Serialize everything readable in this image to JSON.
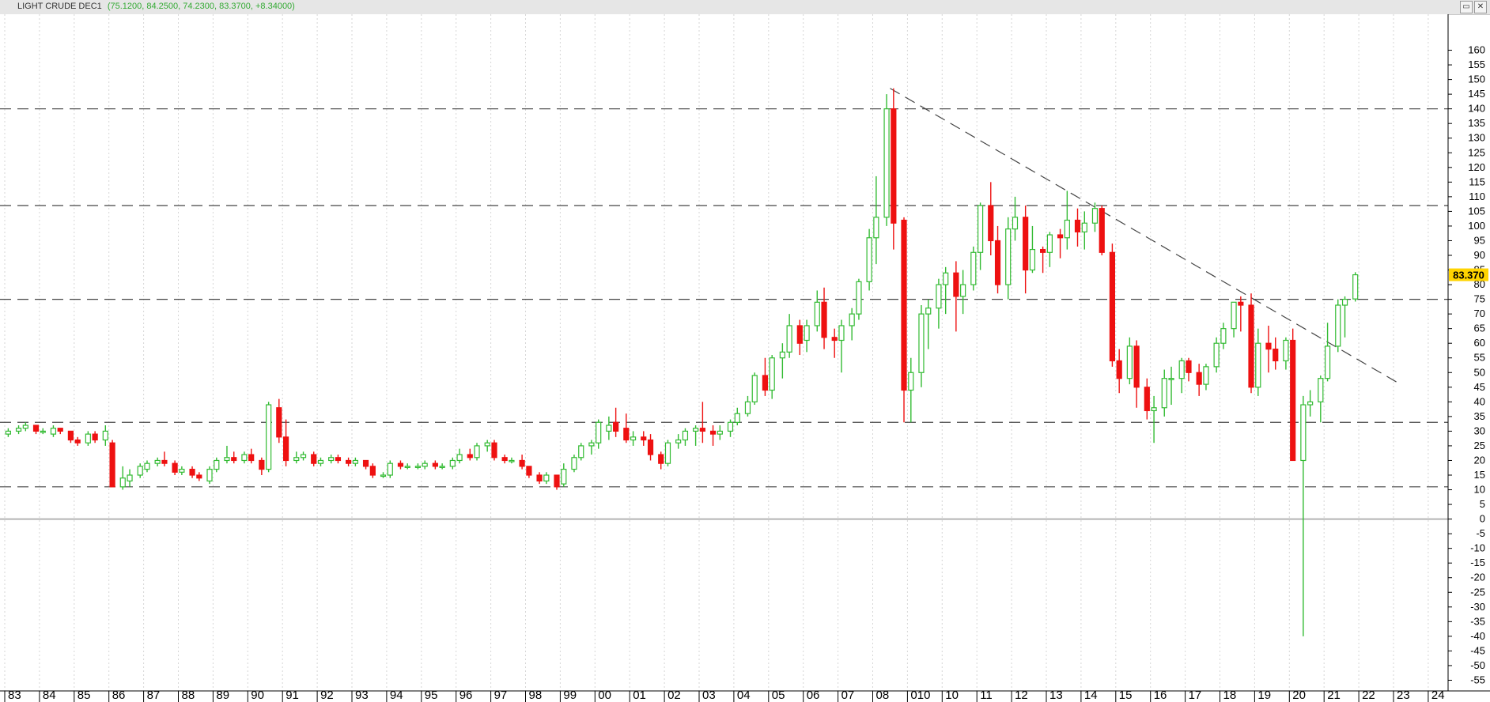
{
  "window": {
    "title": "LIGHT CRUDE DEC1",
    "values": "(75.1200, 84.2500, 74.2300, 83.3700, +8.34000)",
    "restore_glyph": "▭",
    "close_glyph": "✕"
  },
  "colors": {
    "up": "#33bb33",
    "down": "#ee1111",
    "price_tag": "#ffd400",
    "grid": "#d6d6d6",
    "guide": "#444444"
  },
  "chart_data": {
    "type": "candlestick",
    "title": "LIGHT CRUDE DEC1",
    "xlabel": "",
    "ylabel": "",
    "ylim": [
      -60,
      165
    ],
    "y_ticks": [
      160,
      155,
      150,
      145,
      140,
      135,
      130,
      125,
      120,
      115,
      110,
      105,
      100,
      95,
      90,
      85,
      80,
      75,
      70,
      65,
      60,
      55,
      50,
      45,
      40,
      35,
      30,
      25,
      20,
      15,
      10,
      5,
      0,
      -5,
      -10,
      -15,
      -20,
      -25,
      -30,
      -35,
      -40,
      -45,
      -50,
      -55
    ],
    "x_start_year": 1983,
    "x_end_year": 2025,
    "x_tick_labels": [
      "83",
      "84",
      "85",
      "86",
      "87",
      "88",
      "89",
      "90",
      "91",
      "92",
      "93",
      "94",
      "95",
      "96",
      "97",
      "98",
      "99",
      "00",
      "01",
      "02",
      "03",
      "04",
      "05",
      "06",
      "07",
      "08",
      "010",
      "10",
      "11",
      "12",
      "13",
      "14",
      "15",
      "16",
      "17",
      "18",
      "19",
      "20",
      "21",
      "22",
      "23",
      "24"
    ],
    "last_price": "83.370",
    "grid": true,
    "horizontal_levels": [
      140,
      107,
      75,
      33,
      11
    ],
    "zero_line": 0,
    "trendline": {
      "from": {
        "x": 2008.5,
        "y": 147
      },
      "to": {
        "x": 2023.2,
        "y": 46
      }
    },
    "candles": [
      {
        "t": 1983.1,
        "o": 29,
        "h": 31,
        "l": 28,
        "c": 30
      },
      {
        "t": 1983.4,
        "o": 30,
        "h": 32,
        "l": 29,
        "c": 31
      },
      {
        "t": 1983.6,
        "o": 31,
        "h": 33,
        "l": 30,
        "c": 32
      },
      {
        "t": 1983.9,
        "o": 32,
        "h": 32,
        "l": 29,
        "c": 30
      },
      {
        "t": 1984.1,
        "o": 30,
        "h": 31,
        "l": 29,
        "c": 30
      },
      {
        "t": 1984.4,
        "o": 29,
        "h": 32,
        "l": 28,
        "c": 31
      },
      {
        "t": 1984.6,
        "o": 31,
        "h": 31,
        "l": 29,
        "c": 30
      },
      {
        "t": 1984.9,
        "o": 30,
        "h": 30,
        "l": 26,
        "c": 27
      },
      {
        "t": 1985.1,
        "o": 27,
        "h": 28,
        "l": 25,
        "c": 26
      },
      {
        "t": 1985.4,
        "o": 26,
        "h": 30,
        "l": 25,
        "c": 29
      },
      {
        "t": 1985.6,
        "o": 29,
        "h": 30,
        "l": 26,
        "c": 27
      },
      {
        "t": 1985.9,
        "o": 27,
        "h": 32,
        "l": 25,
        "c": 30
      },
      {
        "t": 1986.1,
        "o": 26,
        "h": 27,
        "l": 11,
        "c": 11
      },
      {
        "t": 1986.4,
        "o": 11,
        "h": 18,
        "l": 10,
        "c": 14
      },
      {
        "t": 1986.6,
        "o": 13,
        "h": 17,
        "l": 11,
        "c": 15
      },
      {
        "t": 1986.9,
        "o": 15,
        "h": 19,
        "l": 14,
        "c": 18
      },
      {
        "t": 1987.1,
        "o": 17,
        "h": 20,
        "l": 16,
        "c": 19
      },
      {
        "t": 1987.4,
        "o": 19,
        "h": 21,
        "l": 18,
        "c": 20
      },
      {
        "t": 1987.6,
        "o": 20,
        "h": 23,
        "l": 18,
        "c": 19
      },
      {
        "t": 1987.9,
        "o": 19,
        "h": 20,
        "l": 15,
        "c": 16
      },
      {
        "t": 1988.1,
        "o": 16,
        "h": 18,
        "l": 15,
        "c": 17
      },
      {
        "t": 1988.4,
        "o": 17,
        "h": 18,
        "l": 14,
        "c": 15
      },
      {
        "t": 1988.6,
        "o": 15,
        "h": 16,
        "l": 13,
        "c": 14
      },
      {
        "t": 1988.9,
        "o": 13,
        "h": 18,
        "l": 12,
        "c": 17
      },
      {
        "t": 1989.1,
        "o": 17,
        "h": 21,
        "l": 16,
        "c": 20
      },
      {
        "t": 1989.4,
        "o": 20,
        "h": 25,
        "l": 19,
        "c": 21
      },
      {
        "t": 1989.6,
        "o": 21,
        "h": 23,
        "l": 19,
        "c": 20
      },
      {
        "t": 1989.9,
        "o": 20,
        "h": 23,
        "l": 19,
        "c": 22
      },
      {
        "t": 1990.1,
        "o": 22,
        "h": 24,
        "l": 19,
        "c": 20
      },
      {
        "t": 1990.4,
        "o": 20,
        "h": 21,
        "l": 15,
        "c": 17
      },
      {
        "t": 1990.6,
        "o": 17,
        "h": 40,
        "l": 16,
        "c": 39
      },
      {
        "t": 1990.9,
        "o": 38,
        "h": 41,
        "l": 26,
        "c": 28
      },
      {
        "t": 1991.1,
        "o": 28,
        "h": 34,
        "l": 18,
        "c": 20
      },
      {
        "t": 1991.4,
        "o": 20,
        "h": 23,
        "l": 19,
        "c": 21
      },
      {
        "t": 1991.6,
        "o": 21,
        "h": 23,
        "l": 20,
        "c": 22
      },
      {
        "t": 1991.9,
        "o": 22,
        "h": 23,
        "l": 18,
        "c": 19
      },
      {
        "t": 1992.1,
        "o": 19,
        "h": 21,
        "l": 18,
        "c": 20
      },
      {
        "t": 1992.4,
        "o": 20,
        "h": 22,
        "l": 19,
        "c": 21
      },
      {
        "t": 1992.6,
        "o": 21,
        "h": 22,
        "l": 19,
        "c": 20
      },
      {
        "t": 1992.9,
        "o": 20,
        "h": 21,
        "l": 18,
        "c": 19
      },
      {
        "t": 1993.1,
        "o": 19,
        "h": 21,
        "l": 18,
        "c": 20
      },
      {
        "t": 1993.4,
        "o": 20,
        "h": 20,
        "l": 17,
        "c": 18
      },
      {
        "t": 1993.6,
        "o": 18,
        "h": 19,
        "l": 14,
        "c": 15
      },
      {
        "t": 1993.9,
        "o": 15,
        "h": 16,
        "l": 14,
        "c": 15
      },
      {
        "t": 1994.1,
        "o": 15,
        "h": 20,
        "l": 14,
        "c": 19
      },
      {
        "t": 1994.4,
        "o": 19,
        "h": 20,
        "l": 17,
        "c": 18
      },
      {
        "t": 1994.6,
        "o": 18,
        "h": 19,
        "l": 17,
        "c": 18
      },
      {
        "t": 1994.9,
        "o": 18,
        "h": 19,
        "l": 17,
        "c": 18
      },
      {
        "t": 1995.1,
        "o": 18,
        "h": 20,
        "l": 17,
        "c": 19
      },
      {
        "t": 1995.4,
        "o": 19,
        "h": 20,
        "l": 17,
        "c": 18
      },
      {
        "t": 1995.6,
        "o": 18,
        "h": 19,
        "l": 17,
        "c": 18
      },
      {
        "t": 1995.9,
        "o": 18,
        "h": 21,
        "l": 17,
        "c": 20
      },
      {
        "t": 1996.1,
        "o": 20,
        "h": 24,
        "l": 19,
        "c": 22
      },
      {
        "t": 1996.4,
        "o": 22,
        "h": 24,
        "l": 20,
        "c": 21
      },
      {
        "t": 1996.6,
        "o": 21,
        "h": 26,
        "l": 20,
        "c": 25
      },
      {
        "t": 1996.9,
        "o": 25,
        "h": 27,
        "l": 23,
        "c": 26
      },
      {
        "t": 1997.1,
        "o": 26,
        "h": 27,
        "l": 20,
        "c": 21
      },
      {
        "t": 1997.4,
        "o": 21,
        "h": 22,
        "l": 19,
        "c": 20
      },
      {
        "t": 1997.6,
        "o": 20,
        "h": 21,
        "l": 19,
        "c": 20
      },
      {
        "t": 1997.9,
        "o": 20,
        "h": 22,
        "l": 17,
        "c": 18
      },
      {
        "t": 1998.1,
        "o": 18,
        "h": 18,
        "l": 14,
        "c": 15
      },
      {
        "t": 1998.4,
        "o": 15,
        "h": 16,
        "l": 12,
        "c": 13
      },
      {
        "t": 1998.6,
        "o": 13,
        "h": 16,
        "l": 12,
        "c": 15
      },
      {
        "t": 1998.9,
        "o": 15,
        "h": 15,
        "l": 10,
        "c": 11
      },
      {
        "t": 1999.1,
        "o": 12,
        "h": 19,
        "l": 11,
        "c": 17
      },
      {
        "t": 1999.4,
        "o": 17,
        "h": 22,
        "l": 16,
        "c": 21
      },
      {
        "t": 1999.6,
        "o": 21,
        "h": 26,
        "l": 20,
        "c": 25
      },
      {
        "t": 1999.9,
        "o": 25,
        "h": 27,
        "l": 22,
        "c": 26
      },
      {
        "t": 2000.1,
        "o": 26,
        "h": 34,
        "l": 24,
        "c": 33
      },
      {
        "t": 2000.4,
        "o": 30,
        "h": 35,
        "l": 27,
        "c": 32
      },
      {
        "t": 2000.6,
        "o": 33,
        "h": 38,
        "l": 28,
        "c": 30
      },
      {
        "t": 2000.9,
        "o": 31,
        "h": 36,
        "l": 26,
        "c": 27
      },
      {
        "t": 2001.1,
        "o": 27,
        "h": 30,
        "l": 25,
        "c": 28
      },
      {
        "t": 2001.4,
        "o": 28,
        "h": 30,
        "l": 25,
        "c": 27
      },
      {
        "t": 2001.6,
        "o": 27,
        "h": 29,
        "l": 20,
        "c": 22
      },
      {
        "t": 2001.9,
        "o": 22,
        "h": 23,
        "l": 17,
        "c": 19
      },
      {
        "t": 2002.1,
        "o": 19,
        "h": 27,
        "l": 18,
        "c": 26
      },
      {
        "t": 2002.4,
        "o": 26,
        "h": 29,
        "l": 24,
        "c": 27
      },
      {
        "t": 2002.6,
        "o": 27,
        "h": 31,
        "l": 25,
        "c": 30
      },
      {
        "t": 2002.9,
        "o": 30,
        "h": 32,
        "l": 25,
        "c": 31
      },
      {
        "t": 2003.1,
        "o": 31,
        "h": 40,
        "l": 26,
        "c": 30
      },
      {
        "t": 2003.4,
        "o": 30,
        "h": 32,
        "l": 25,
        "c": 29
      },
      {
        "t": 2003.6,
        "o": 29,
        "h": 32,
        "l": 27,
        "c": 30
      },
      {
        "t": 2003.9,
        "o": 30,
        "h": 34,
        "l": 28,
        "c": 33
      },
      {
        "t": 2004.1,
        "o": 33,
        "h": 38,
        "l": 32,
        "c": 36
      },
      {
        "t": 2004.4,
        "o": 36,
        "h": 42,
        "l": 35,
        "c": 40
      },
      {
        "t": 2004.6,
        "o": 40,
        "h": 50,
        "l": 39,
        "c": 49
      },
      {
        "t": 2004.9,
        "o": 49,
        "h": 55,
        "l": 42,
        "c": 44
      },
      {
        "t": 2005.1,
        "o": 44,
        "h": 56,
        "l": 41,
        "c": 55
      },
      {
        "t": 2005.4,
        "o": 55,
        "h": 60,
        "l": 48,
        "c": 57
      },
      {
        "t": 2005.6,
        "o": 57,
        "h": 70,
        "l": 55,
        "c": 66
      },
      {
        "t": 2005.9,
        "o": 66,
        "h": 68,
        "l": 56,
        "c": 60
      },
      {
        "t": 2006.1,
        "o": 61,
        "h": 68,
        "l": 57,
        "c": 66
      },
      {
        "t": 2006.4,
        "o": 66,
        "h": 78,
        "l": 64,
        "c": 74
      },
      {
        "t": 2006.6,
        "o": 74,
        "h": 79,
        "l": 58,
        "c": 62
      },
      {
        "t": 2006.9,
        "o": 62,
        "h": 65,
        "l": 55,
        "c": 61
      },
      {
        "t": 2007.1,
        "o": 61,
        "h": 68,
        "l": 50,
        "c": 66
      },
      {
        "t": 2007.4,
        "o": 66,
        "h": 72,
        "l": 61,
        "c": 70
      },
      {
        "t": 2007.6,
        "o": 70,
        "h": 82,
        "l": 68,
        "c": 81
      },
      {
        "t": 2007.9,
        "o": 81,
        "h": 99,
        "l": 78,
        "c": 96
      },
      {
        "t": 2008.1,
        "o": 96,
        "h": 117,
        "l": 87,
        "c": 103
      },
      {
        "t": 2008.4,
        "o": 103,
        "h": 145,
        "l": 100,
        "c": 140
      },
      {
        "t": 2008.6,
        "o": 140,
        "h": 147,
        "l": 92,
        "c": 101
      },
      {
        "t": 2008.9,
        "o": 102,
        "h": 103,
        "l": 33,
        "c": 44
      },
      {
        "t": 2009.1,
        "o": 44,
        "h": 55,
        "l": 33,
        "c": 50
      },
      {
        "t": 2009.4,
        "o": 50,
        "h": 73,
        "l": 45,
        "c": 70
      },
      {
        "t": 2009.6,
        "o": 70,
        "h": 75,
        "l": 58,
        "c": 72
      },
      {
        "t": 2009.9,
        "o": 72,
        "h": 82,
        "l": 65,
        "c": 80
      },
      {
        "t": 2010.1,
        "o": 80,
        "h": 86,
        "l": 70,
        "c": 84
      },
      {
        "t": 2010.4,
        "o": 84,
        "h": 88,
        "l": 64,
        "c": 76
      },
      {
        "t": 2010.6,
        "o": 76,
        "h": 85,
        "l": 70,
        "c": 80
      },
      {
        "t": 2010.9,
        "o": 80,
        "h": 93,
        "l": 78,
        "c": 91
      },
      {
        "t": 2011.1,
        "o": 91,
        "h": 108,
        "l": 85,
        "c": 107
      },
      {
        "t": 2011.4,
        "o": 107,
        "h": 115,
        "l": 90,
        "c": 95
      },
      {
        "t": 2011.6,
        "o": 95,
        "h": 100,
        "l": 77,
        "c": 80
      },
      {
        "t": 2011.9,
        "o": 80,
        "h": 103,
        "l": 75,
        "c": 99
      },
      {
        "t": 2012.1,
        "o": 99,
        "h": 110,
        "l": 95,
        "c": 103
      },
      {
        "t": 2012.4,
        "o": 103,
        "h": 107,
        "l": 77,
        "c": 85
      },
      {
        "t": 2012.6,
        "o": 85,
        "h": 100,
        "l": 84,
        "c": 92
      },
      {
        "t": 2012.9,
        "o": 92,
        "h": 93,
        "l": 84,
        "c": 91
      },
      {
        "t": 2013.1,
        "o": 91,
        "h": 98,
        "l": 86,
        "c": 97
      },
      {
        "t": 2013.4,
        "o": 97,
        "h": 99,
        "l": 89,
        "c": 96
      },
      {
        "t": 2013.6,
        "o": 96,
        "h": 112,
        "l": 92,
        "c": 102
      },
      {
        "t": 2013.9,
        "o": 102,
        "h": 106,
        "l": 93,
        "c": 98
      },
      {
        "t": 2014.1,
        "o": 98,
        "h": 105,
        "l": 92,
        "c": 101
      },
      {
        "t": 2014.4,
        "o": 101,
        "h": 108,
        "l": 98,
        "c": 106
      },
      {
        "t": 2014.6,
        "o": 106,
        "h": 107,
        "l": 90,
        "c": 91
      },
      {
        "t": 2014.9,
        "o": 91,
        "h": 94,
        "l": 52,
        "c": 54
      },
      {
        "t": 2015.1,
        "o": 54,
        "h": 58,
        "l": 43,
        "c": 48
      },
      {
        "t": 2015.4,
        "o": 48,
        "h": 62,
        "l": 46,
        "c": 59
      },
      {
        "t": 2015.6,
        "o": 59,
        "h": 61,
        "l": 38,
        "c": 45
      },
      {
        "t": 2015.9,
        "o": 45,
        "h": 48,
        "l": 34,
        "c": 37
      },
      {
        "t": 2016.1,
        "o": 37,
        "h": 42,
        "l": 26,
        "c": 38
      },
      {
        "t": 2016.4,
        "o": 38,
        "h": 51,
        "l": 35,
        "c": 48
      },
      {
        "t": 2016.6,
        "o": 48,
        "h": 52,
        "l": 39,
        "c": 48
      },
      {
        "t": 2016.9,
        "o": 48,
        "h": 55,
        "l": 43,
        "c": 54
      },
      {
        "t": 2017.1,
        "o": 54,
        "h": 55,
        "l": 47,
        "c": 50
      },
      {
        "t": 2017.4,
        "o": 50,
        "h": 53,
        "l": 42,
        "c": 46
      },
      {
        "t": 2017.6,
        "o": 46,
        "h": 53,
        "l": 44,
        "c": 52
      },
      {
        "t": 2017.9,
        "o": 52,
        "h": 62,
        "l": 50,
        "c": 60
      },
      {
        "t": 2018.1,
        "o": 60,
        "h": 67,
        "l": 58,
        "c": 65
      },
      {
        "t": 2018.4,
        "o": 65,
        "h": 74,
        "l": 62,
        "c": 74
      },
      {
        "t": 2018.6,
        "o": 74,
        "h": 76,
        "l": 64,
        "c": 73
      },
      {
        "t": 2018.9,
        "o": 73,
        "h": 77,
        "l": 43,
        "c": 45
      },
      {
        "t": 2019.1,
        "o": 45,
        "h": 65,
        "l": 42,
        "c": 60
      },
      {
        "t": 2019.4,
        "o": 60,
        "h": 66,
        "l": 50,
        "c": 58
      },
      {
        "t": 2019.6,
        "o": 58,
        "h": 62,
        "l": 51,
        "c": 54
      },
      {
        "t": 2019.9,
        "o": 54,
        "h": 62,
        "l": 51,
        "c": 61
      },
      {
        "t": 2020.1,
        "o": 61,
        "h": 65,
        "l": 20,
        "c": 20
      },
      {
        "t": 2020.4,
        "o": 20,
        "h": 42,
        "l": -40,
        "c": 39
      },
      {
        "t": 2020.6,
        "o": 39,
        "h": 44,
        "l": 35,
        "c": 40
      },
      {
        "t": 2020.9,
        "o": 40,
        "h": 49,
        "l": 33,
        "c": 48
      },
      {
        "t": 2021.1,
        "o": 48,
        "h": 67,
        "l": 47,
        "c": 59
      },
      {
        "t": 2021.4,
        "o": 59,
        "h": 75,
        "l": 57,
        "c": 73
      },
      {
        "t": 2021.6,
        "o": 73,
        "h": 76,
        "l": 62,
        "c": 75
      },
      {
        "t": 2021.9,
        "o": 75.12,
        "h": 84.25,
        "l": 74.23,
        "c": 83.37
      }
    ]
  }
}
